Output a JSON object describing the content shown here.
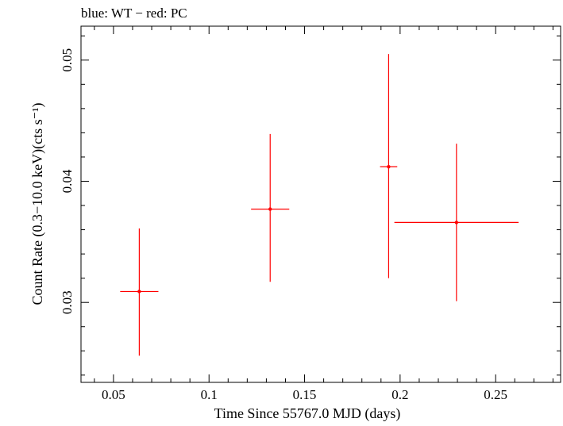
{
  "chart_data": {
    "type": "scatter",
    "title": "blue: WT − red: PC",
    "xlabel": "Time Since 55767.0 MJD (days)",
    "ylabel": "Count Rate (0.3−10.0 keV)(cts s⁻¹)",
    "xlim": [
      0.033,
      0.284
    ],
    "ylim": [
      0.0234,
      0.0528
    ],
    "x_ticks": [
      0.05,
      0.1,
      0.15,
      0.2,
      0.25
    ],
    "x_tick_labels": [
      "0.05",
      "0.1",
      "0.15",
      "0.2",
      "0.25"
    ],
    "y_ticks": [
      0.03,
      0.04,
      0.05
    ],
    "y_tick_labels": [
      "0.03",
      "0.04",
      "0.05"
    ],
    "grid": false,
    "series": [
      {
        "color": "#ff0000",
        "points": [
          {
            "x": 0.0635,
            "y": 0.0309,
            "x_low": 0.0535,
            "x_high": 0.0735,
            "y_low": 0.0256,
            "y_high": 0.0361
          },
          {
            "x": 0.132,
            "y": 0.0377,
            "x_low": 0.122,
            "x_high": 0.142,
            "y_low": 0.0317,
            "y_high": 0.0439
          },
          {
            "x": 0.194,
            "y": 0.0412,
            "x_low": 0.1895,
            "x_high": 0.1985,
            "y_low": 0.032,
            "y_high": 0.0505
          },
          {
            "x": 0.2295,
            "y": 0.0366,
            "x_low": 0.197,
            "x_high": 0.262,
            "y_low": 0.0301,
            "y_high": 0.0431
          }
        ]
      }
    ]
  }
}
